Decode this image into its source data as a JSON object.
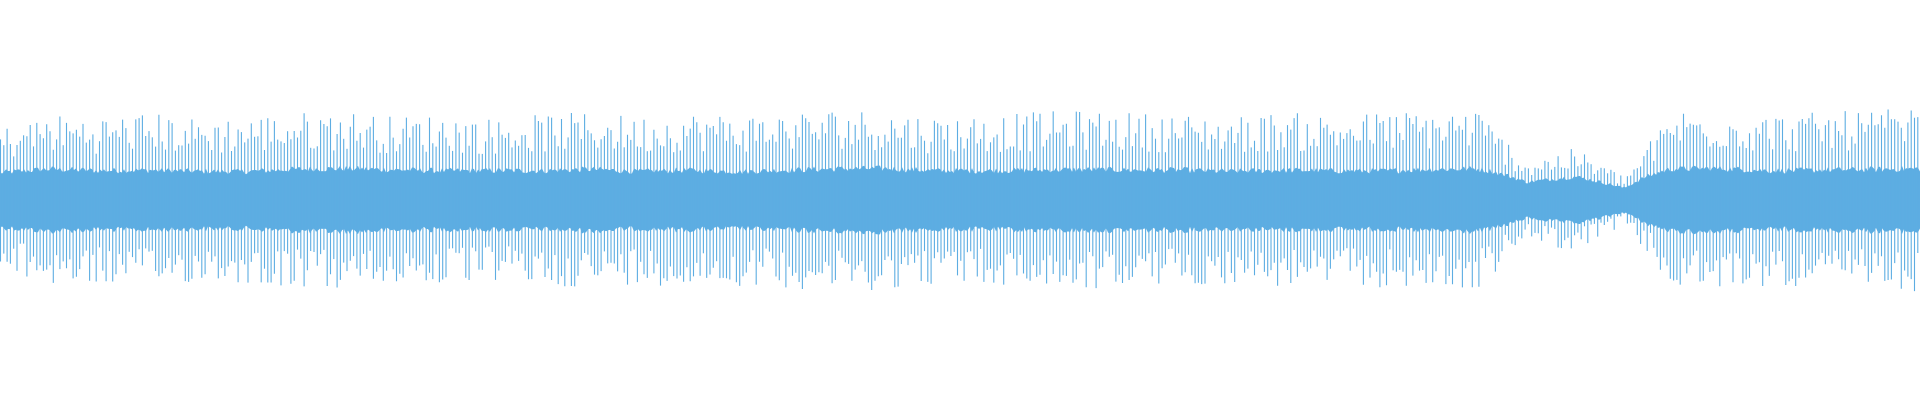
{
  "waveform": {
    "color": "#5dade2",
    "background": "#ffffff",
    "envelope": [
      0.36,
      0.43,
      0.42,
      0.44,
      0.41,
      0.42,
      0.44,
      0.45,
      0.42,
      0.43,
      0.41,
      0.43,
      0.44,
      0.42,
      0.44,
      0.43,
      0.44,
      0.46,
      0.45,
      0.42,
      0.43,
      0.44,
      0.45,
      0.44,
      0.43,
      0.42,
      0.44,
      0.43,
      0.44,
      0.45,
      0.46,
      0.2,
      0.26,
      0.12,
      0.46,
      0.45,
      0.43,
      0.44,
      0.45,
      0.46
    ],
    "core_ratio": [
      0.38,
      0.36,
      0.35,
      0.34,
      0.35,
      0.34,
      0.35,
      0.35,
      0.36,
      0.34,
      0.36,
      0.34,
      0.35,
      0.34,
      0.34,
      0.33,
      0.34,
      0.34,
      0.35,
      0.35,
      0.34,
      0.34,
      0.34,
      0.34,
      0.35,
      0.34,
      0.34,
      0.34,
      0.33,
      0.34,
      0.34,
      0.45,
      0.45,
      0.5,
      0.34,
      0.35,
      0.34,
      0.34,
      0.34,
      0.34
    ]
  }
}
